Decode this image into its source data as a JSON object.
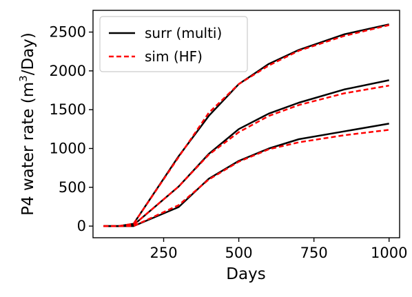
{
  "chart_data": {
    "type": "line",
    "xlabel": "Days",
    "ylabel_main": "P4 water rate (m",
    "ylabel_sup": "3",
    "ylabel_tail": "/Day)",
    "xlim": [
      15,
      1035
    ],
    "ylim": [
      -150,
      2780
    ],
    "xticks": [
      250,
      500,
      750,
      1000
    ],
    "yticks": [
      0,
      500,
      1000,
      1500,
      2000,
      2500
    ],
    "grid": false,
    "legend_position": "top-left",
    "legend": [
      {
        "label": "surr (multi)",
        "color": "#000000",
        "dash": "solid"
      },
      {
        "label": "sim (HF)",
        "color": "#ff0000",
        "dash": "dashed"
      }
    ],
    "x": [
      50,
      100,
      150,
      300,
      400,
      500,
      600,
      700,
      850,
      1000
    ],
    "groups": [
      {
        "surr": [
          0,
          0,
          30,
          900,
          1420,
          1830,
          2090,
          2270,
          2470,
          2600
        ],
        "sim": [
          0,
          0,
          30,
          890,
          1460,
          1830,
          2070,
          2260,
          2450,
          2590
        ]
      },
      {
        "surr": [
          0,
          0,
          15,
          510,
          930,
          1250,
          1450,
          1590,
          1760,
          1880
        ],
        "sim": [
          0,
          0,
          15,
          510,
          920,
          1210,
          1420,
          1560,
          1710,
          1810
        ]
      },
      {
        "surr": [
          0,
          0,
          0,
          245,
          610,
          840,
          1000,
          1120,
          1220,
          1320
        ],
        "sim": [
          0,
          0,
          0,
          270,
          600,
          830,
          990,
          1080,
          1170,
          1240
        ]
      }
    ]
  }
}
